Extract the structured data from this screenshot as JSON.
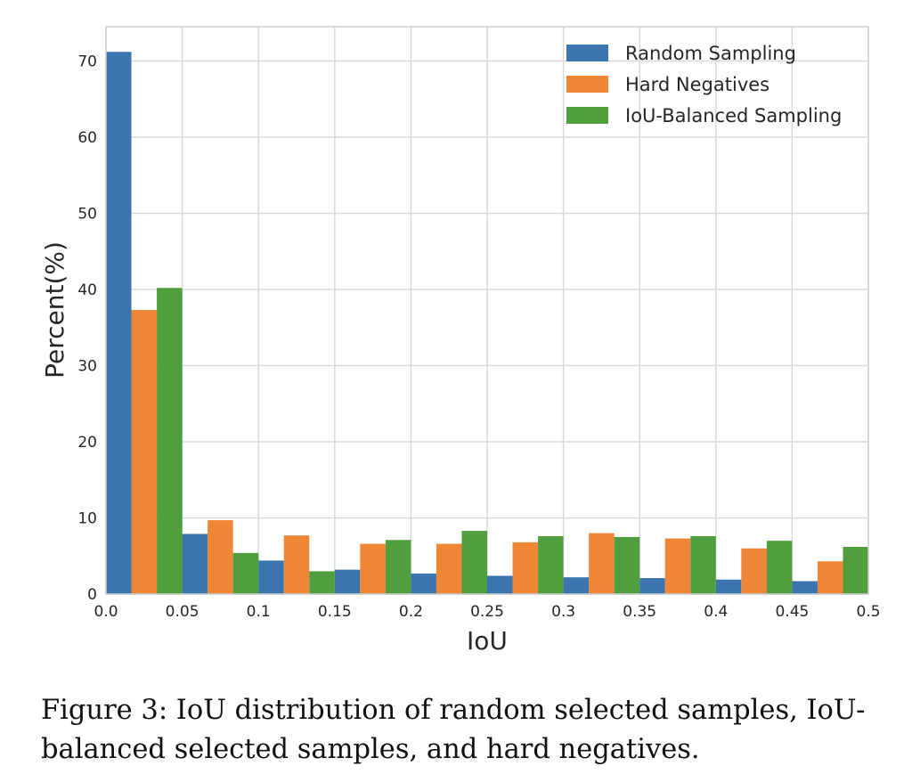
{
  "caption": "Figure 3: IoU distribution of random selected samples, IoU-balanced selected samples, and hard negatives.",
  "chart_data": {
    "type": "bar",
    "title": "",
    "xlabel": "IoU",
    "ylabel": "Percent(%)",
    "x_bins": [
      0.0,
      0.05,
      0.1,
      0.15,
      0.2,
      0.25,
      0.3,
      0.35,
      0.4,
      0.45
    ],
    "xticks": [
      "0.0",
      "0.05",
      "0.1",
      "0.15",
      "0.2",
      "0.25",
      "0.3",
      "0.35",
      "0.4",
      "0.45",
      "0.5"
    ],
    "xlim": [
      0,
      0.5
    ],
    "yticks": [
      "0",
      "10",
      "20",
      "30",
      "40",
      "50",
      "60",
      "70"
    ],
    "ylim": [
      0,
      74.5
    ],
    "grid": true,
    "legend_position": "top-right",
    "series": [
      {
        "name": "Random Sampling",
        "color": "#3b75af",
        "values": [
          71.2,
          7.9,
          4.4,
          3.2,
          2.7,
          2.4,
          2.2,
          2.1,
          1.9,
          1.7
        ]
      },
      {
        "name": "Hard Negatives",
        "color": "#ef8636",
        "values": [
          37.3,
          9.7,
          7.7,
          6.6,
          6.6,
          6.8,
          8.0,
          7.3,
          6.0,
          4.3
        ]
      },
      {
        "name": "IoU-Balanced Sampling",
        "color": "#519e3e",
        "values": [
          40.2,
          5.4,
          3.0,
          7.1,
          8.3,
          7.6,
          7.5,
          7.6,
          7.0,
          6.2
        ]
      }
    ]
  }
}
